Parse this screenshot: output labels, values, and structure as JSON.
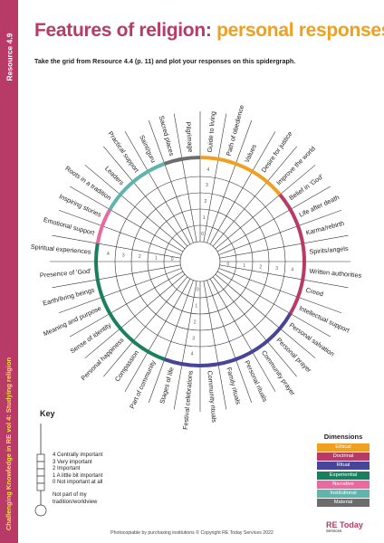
{
  "sidebar": {
    "resource": "Resource 4.9",
    "series": "Challenging Knowledge in RE vol 4: Studying religion"
  },
  "title": {
    "part1": "Features of religion:",
    "part2": "personal responses"
  },
  "instruction": "Take the grid from Resource 4.4 (p. 11) and plot your responses on this spidergraph.",
  "dimensions": {
    "heading": "Dimensions",
    "items": [
      {
        "label": "Ethical",
        "color": "#f0a020"
      },
      {
        "label": "Doctrinal",
        "color": "#b83b67"
      },
      {
        "label": "Ritual",
        "color": "#46459a"
      },
      {
        "label": "Experiential",
        "color": "#1a7f5e"
      },
      {
        "label": "Narrative",
        "color": "#e86aa0"
      },
      {
        "label": "Institutional",
        "color": "#5fb5ad"
      },
      {
        "label": "Material",
        "color": "#6c6c6c"
      }
    ]
  },
  "spoke_labels": [
    "Guide to living",
    "Path of obedience",
    "Values",
    "Desire for justice",
    "Improve the world",
    "Belief in 'God'",
    "Life after death",
    "Karma/rebirth",
    "Spirits/angels",
    "Written authorities",
    "Creed",
    "Intellectual support",
    "Personal salvation",
    "Personal prayer",
    "Community prayer",
    "Personal rituals",
    "Family rituals",
    "Community rituals",
    "Festival celebrations",
    "Stages of life",
    "Part of community",
    "Compassion",
    "Personal happiness",
    "Sense of identity",
    "Meaning and purpose",
    "Earth/living beings",
    "Presence of 'God'",
    "Spiritual experiences",
    "Emotional support",
    "Inspiring stories",
    "Roots in a tradition",
    "Leaders",
    "Practical support",
    "Saint/guru",
    "Sacred places",
    "Pilgrimage"
  ],
  "scale": [
    "4",
    "3",
    "2",
    "1",
    "0"
  ],
  "key": {
    "heading": "Key",
    "items": [
      "4  Centrally important",
      "3  Very important",
      "2  Important",
      "1  A little bit important",
      "0  Not important at all"
    ],
    "none": "Not part of my tradition/worldview"
  },
  "footer": "Photocopiable by purchasing institutions © Copyright RE Today Services 2022",
  "logo": {
    "name": "RE Today",
    "sub": "Services"
  }
}
